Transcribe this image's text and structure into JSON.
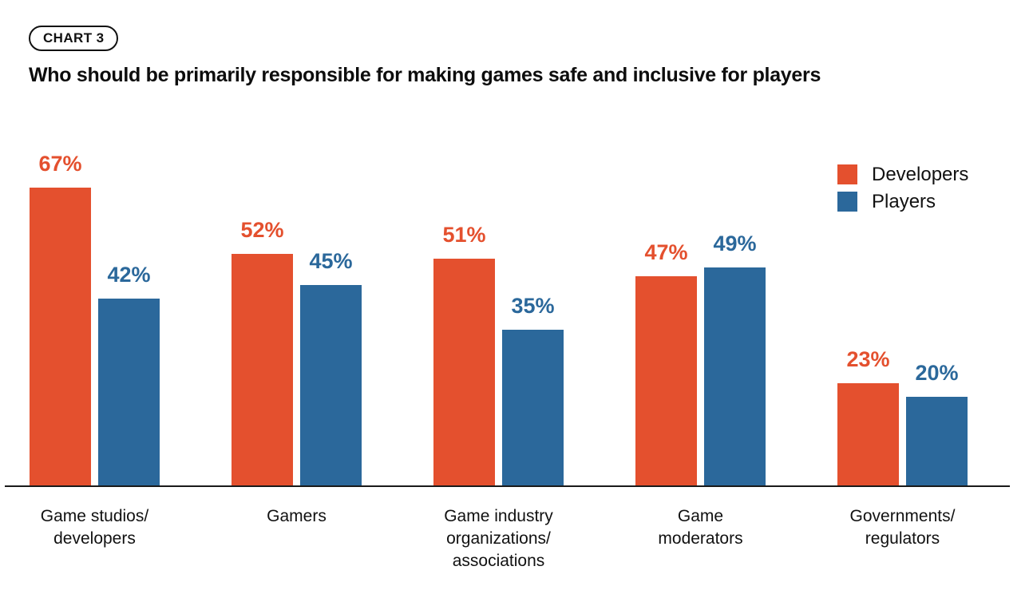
{
  "badge": {
    "label": "CHART 3"
  },
  "title": "Who should be primarily responsible for making games safe and inclusive for players",
  "colors": {
    "axis": "#1A1A1A",
    "text": "#111111",
    "background": "#FFFFFF"
  },
  "chart_data": {
    "type": "bar",
    "title": "Who should be primarily responsible for making games safe and inclusive for players",
    "unit": "%",
    "categories": [
      "Game studios/developers",
      "Gamers",
      "Game industry organizations/associations",
      "Game moderators",
      "Governments/regulators"
    ],
    "category_lines": [
      [
        "Game studios/",
        "developers"
      ],
      [
        "Gamers"
      ],
      [
        "Game industry",
        "organizations/",
        "associations"
      ],
      [
        "Game",
        "moderators"
      ],
      [
        "Governments/",
        "regulators"
      ]
    ],
    "series": [
      {
        "name": "Developers",
        "color": "#E4502E",
        "values": [
          67,
          52,
          51,
          47,
          23
        ]
      },
      {
        "name": "Players",
        "color": "#2B689B",
        "values": [
          42,
          45,
          35,
          49,
          20
        ]
      }
    ],
    "value_labels": true,
    "grid": false,
    "y_axis_visible": false,
    "x_baseline_visible": true,
    "ylim": [
      0,
      100
    ],
    "legend_position": "top-right"
  }
}
